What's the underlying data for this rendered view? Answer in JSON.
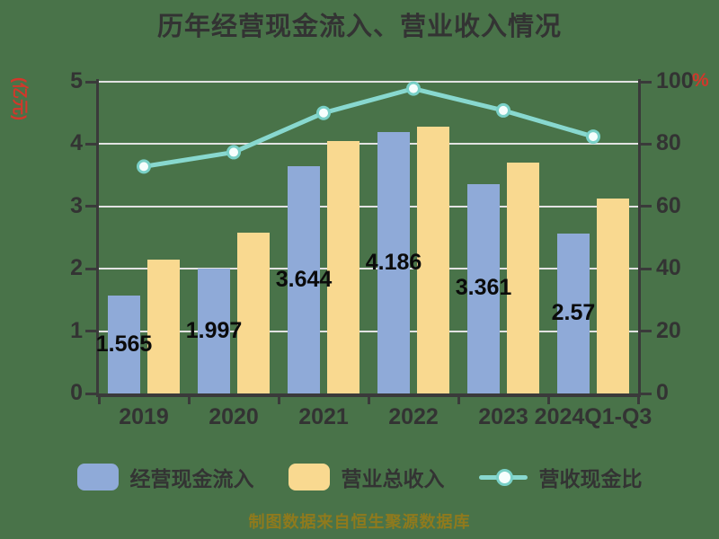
{
  "title": "历年经营现金流入、营业收入情况",
  "source_note": "制图数据来自恒生聚源数据库",
  "colors": {
    "background": "#497349",
    "bar_cash_inflow": "#8FAAD8",
    "bar_revenue": "#F9D990",
    "ratio_line": "#88D8CF",
    "marker_fill": "#F6FEFD",
    "gridline": "#E2E2E2",
    "axis": "#3A3A3A",
    "text_dark": "#333333",
    "data_label": "#0B0B0B",
    "axis_unit_red": "#D2372B",
    "source_text": "#8F7A1D"
  },
  "chart_data": {
    "type": "bar",
    "subtype": "grouped-bars-with-line",
    "title": "历年经营现金流入、营业收入情况",
    "categories": [
      "2019",
      "2020",
      "2021",
      "2022",
      "2023",
      "2024Q1-Q3"
    ],
    "series": [
      {
        "name": "经营现金流入",
        "type": "bar",
        "axis": "left",
        "color": "#8FAAD8",
        "values": [
          1.565,
          1.997,
          3.644,
          4.186,
          3.361,
          2.57
        ],
        "labels": [
          "1.565",
          "1.997",
          "3.644",
          "4.186",
          "3.361",
          "2.57"
        ]
      },
      {
        "name": "营业总收入",
        "type": "bar",
        "axis": "left",
        "color": "#F9D990",
        "values": [
          2.15,
          2.58,
          4.05,
          4.28,
          3.7,
          3.12
        ]
      },
      {
        "name": "营收现金比",
        "type": "line",
        "axis": "right",
        "color": "#88D8CF",
        "values": [
          72.8,
          77.4,
          90.0,
          97.8,
          90.8,
          82.4
        ]
      }
    ],
    "left_axis": {
      "unit": "(亿元)",
      "min": 0,
      "max": 5,
      "ticks": [
        "0",
        "1",
        "2",
        "3",
        "4",
        "5"
      ]
    },
    "right_axis": {
      "unit": "%",
      "min": 0,
      "max": 100,
      "ticks": [
        "0",
        "20",
        "40",
        "60",
        "80",
        "100"
      ]
    },
    "grid": true,
    "legend_position": "bottom"
  }
}
